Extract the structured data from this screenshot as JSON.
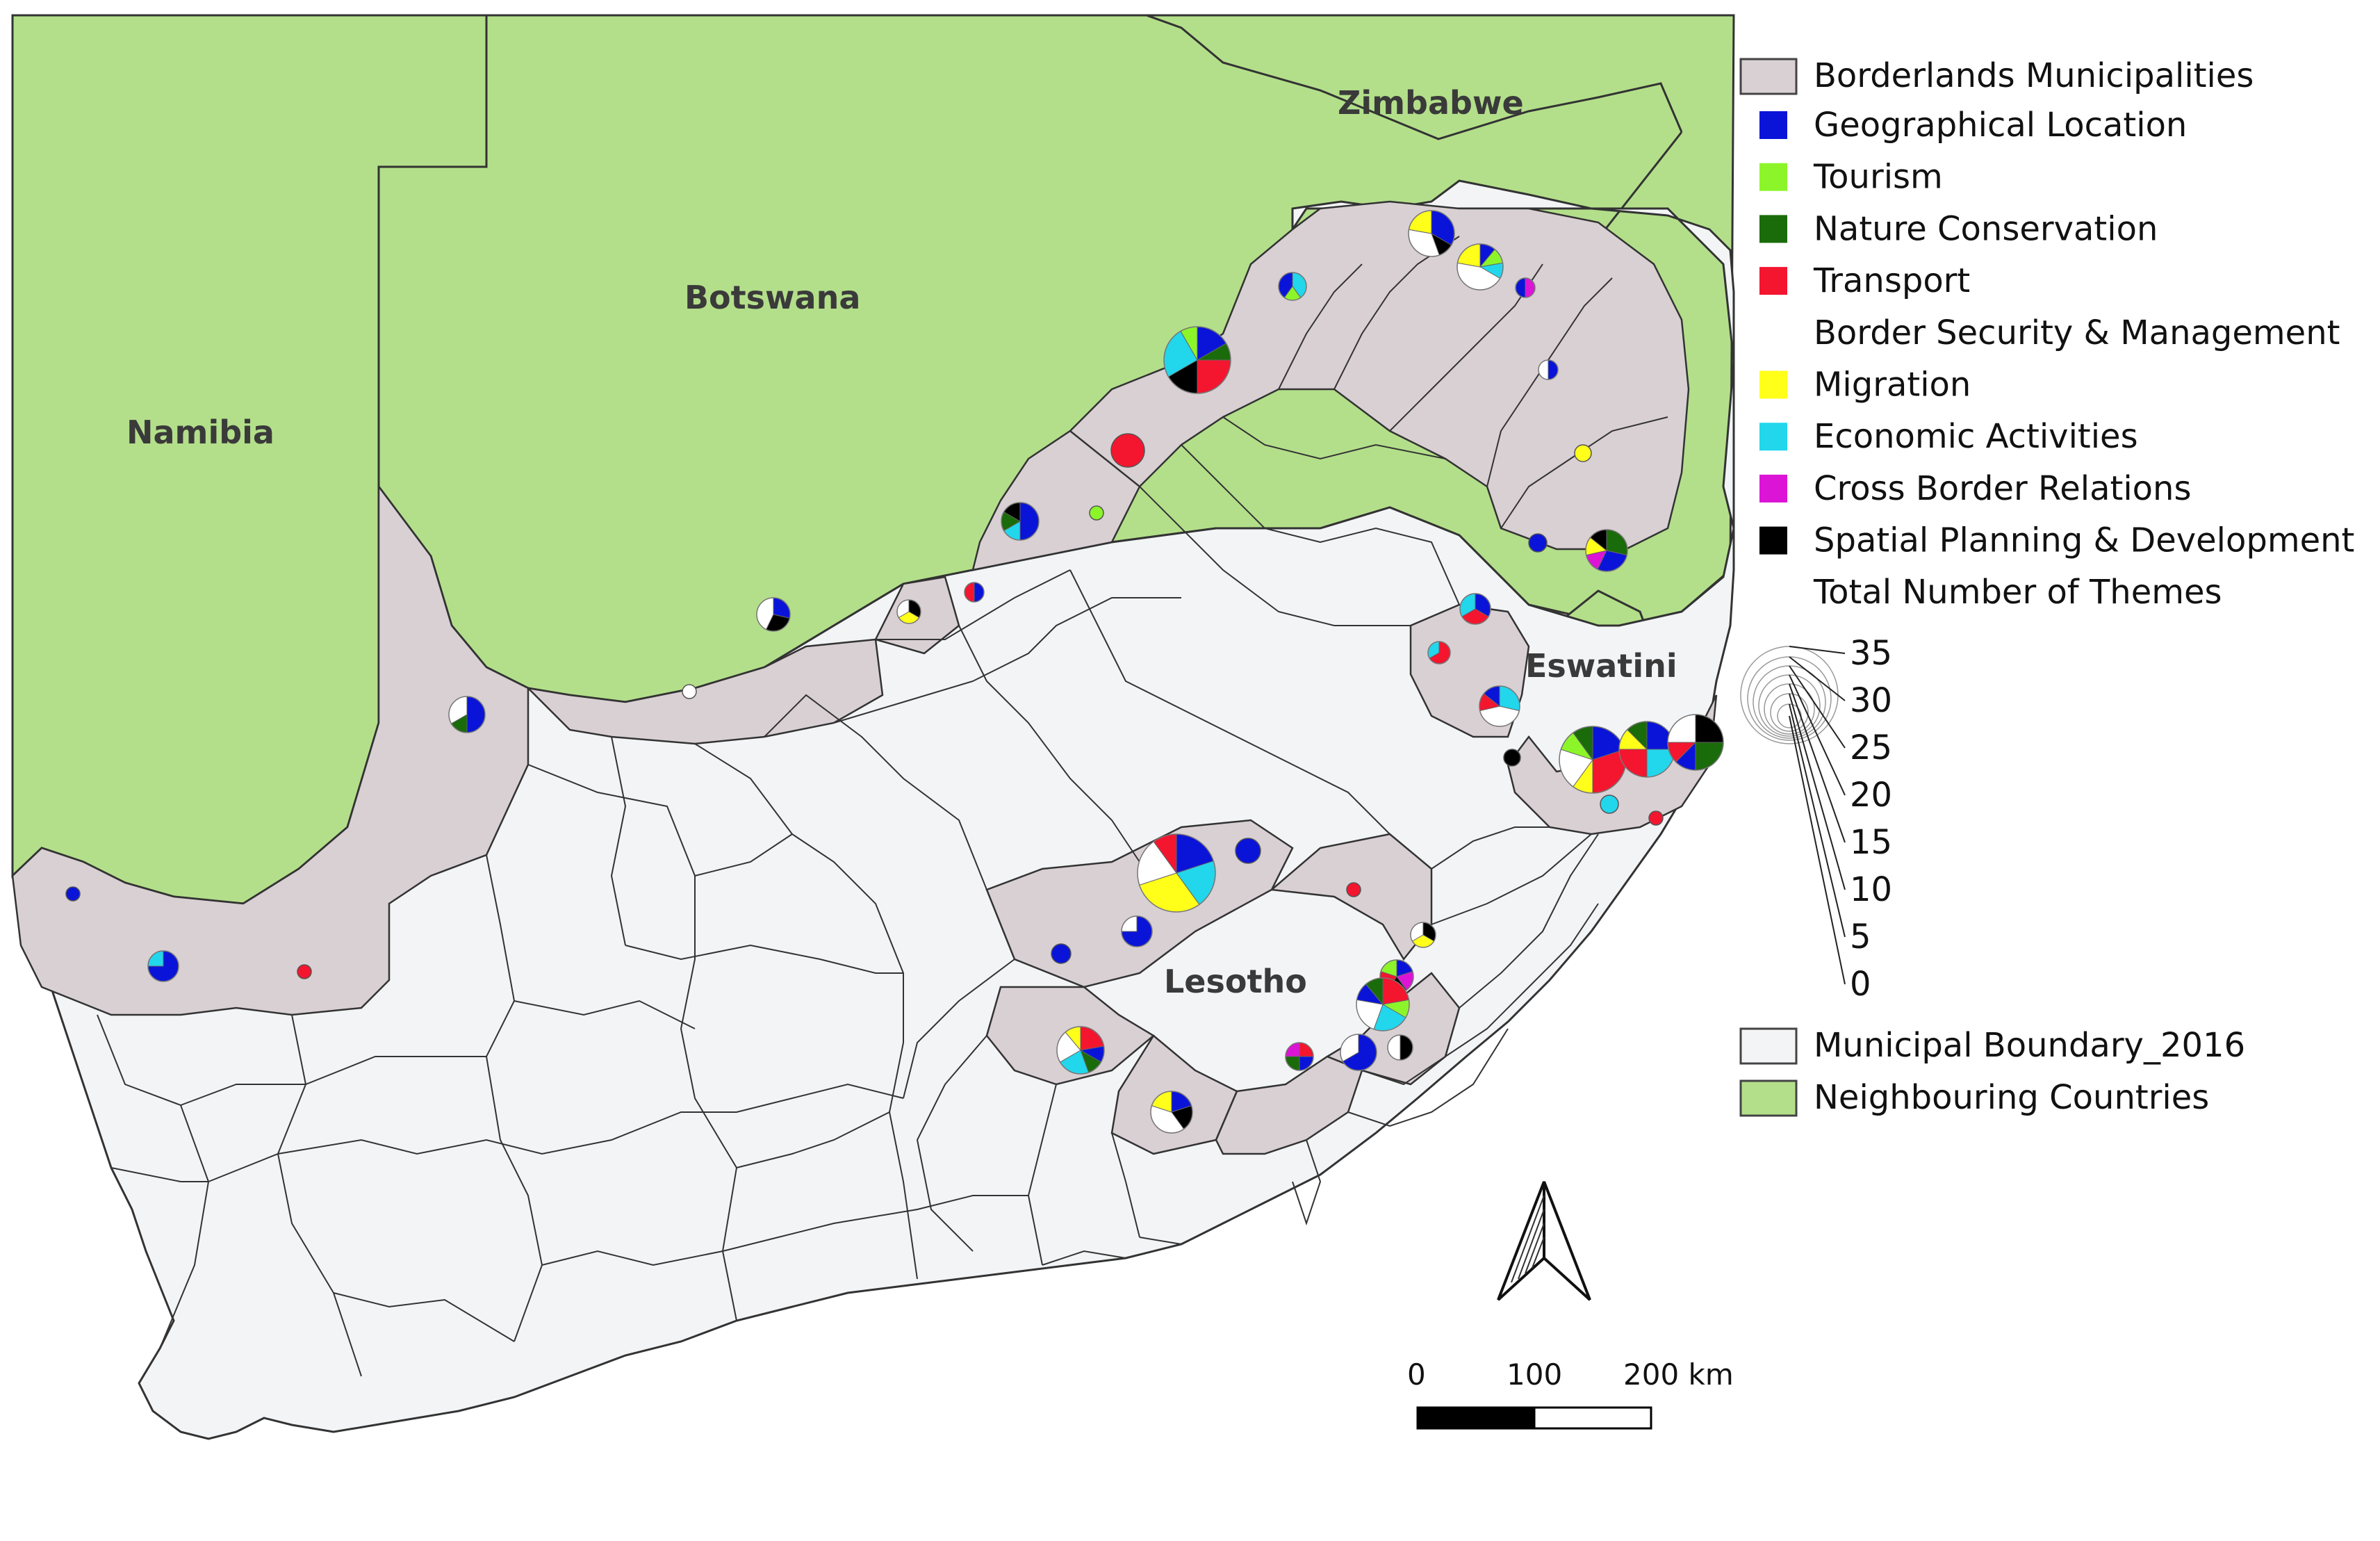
{
  "map": {
    "countries": [
      {
        "name": "Zimbabwe"
      },
      {
        "name": "Botswana"
      },
      {
        "name": "Namibia"
      },
      {
        "name": "Eswatini"
      },
      {
        "name": "Lesotho"
      }
    ]
  },
  "legend": {
    "layers": [
      {
        "label": "Borderlands Municipalities",
        "color": "#d9d0d3"
      },
      {
        "label": "Municipal Boundary_2016",
        "color": "#f2f4f6"
      },
      {
        "label": "Neighbouring Countries",
        "color": "#b3df8a"
      }
    ],
    "themes": [
      {
        "label": "Geographical Location",
        "color": "#0a14d8"
      },
      {
        "label": "Tourism",
        "color": "#8cf52a"
      },
      {
        "label": "Nature Conservation",
        "color": "#1a6b0a"
      },
      {
        "label": "Transport",
        "color": "#f4152f"
      },
      {
        "label": "Border Security & Management",
        "color": "#ffffff"
      },
      {
        "label": "Migration",
        "color": "#ffff1a"
      },
      {
        "label": "Economic Activities",
        "color": "#22d6ec"
      },
      {
        "label": "Cross Border Relations",
        "color": "#dc14d6"
      },
      {
        "label": "Spatial Planning & Development",
        "color": "#000000"
      }
    ],
    "size_title": "Total Number of Themes",
    "size_values": [
      "35",
      "30",
      "25",
      "20",
      "15",
      "10",
      "5",
      "0"
    ]
  },
  "scale_bar": {
    "labels": [
      "0",
      "100",
      "200 km"
    ]
  }
}
